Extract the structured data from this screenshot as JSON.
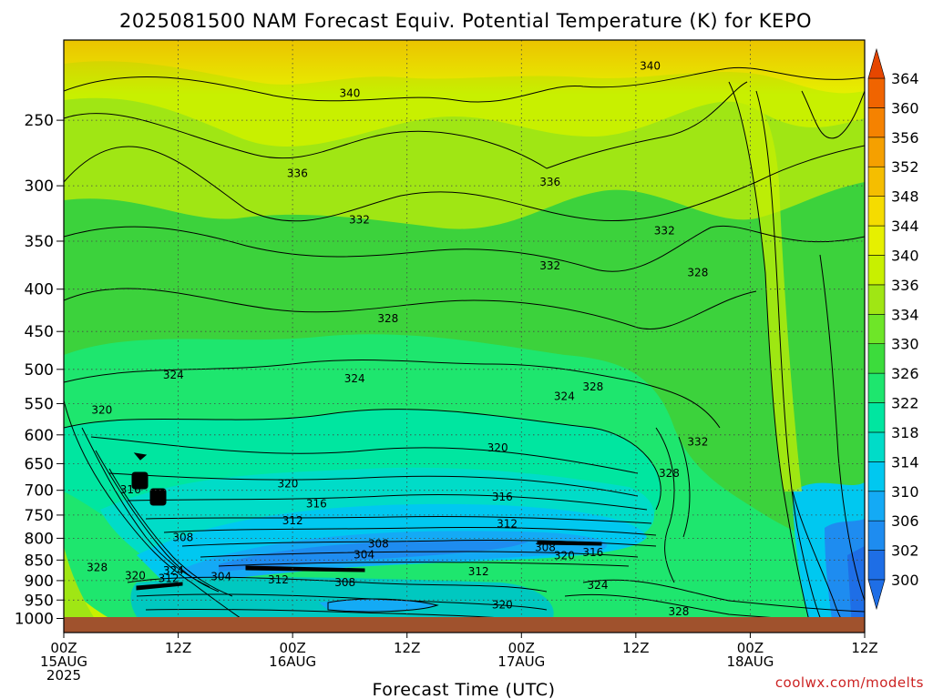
{
  "title": "2025081500 NAM Forecast Equiv. Potential Temperature (K) for KEPO",
  "watermark": "coolwx.com/modelts",
  "chart_data": {
    "type": "heatmap",
    "title": "2025081500 NAM Forecast Equiv. Potential Temperature (K) for KEPO",
    "xlabel": "Forecast Time (UTC)",
    "ylabel": "",
    "x_unit": "hours since 2025-08-15 00Z",
    "xlim": [
      0,
      84
    ],
    "ylim": [
      1040,
      200
    ],
    "y_scale": "log-pressure",
    "grid": true,
    "x_ticks": [
      {
        "hour": 0,
        "lines": [
          "00Z",
          "15AUG",
          "2025"
        ]
      },
      {
        "hour": 12,
        "lines": [
          "12Z"
        ]
      },
      {
        "hour": 24,
        "lines": [
          "00Z",
          "16AUG"
        ]
      },
      {
        "hour": 36,
        "lines": [
          "12Z"
        ]
      },
      {
        "hour": 48,
        "lines": [
          "00Z",
          "17AUG"
        ]
      },
      {
        "hour": 60,
        "lines": [
          "12Z"
        ]
      },
      {
        "hour": 72,
        "lines": [
          "00Z",
          "18AUG"
        ]
      },
      {
        "hour": 84,
        "lines": [
          "12Z"
        ]
      }
    ],
    "y_ticks": [
      250,
      300,
      350,
      400,
      450,
      500,
      550,
      600,
      650,
      700,
      750,
      800,
      850,
      900,
      950,
      1000
    ],
    "colorbar": {
      "levels": [
        300,
        302,
        306,
        310,
        314,
        318,
        322,
        326,
        330,
        334,
        336,
        340,
        344,
        348,
        352,
        356,
        360,
        364
      ],
      "colors": [
        "#1e6ee6",
        "#1e8cf0",
        "#14aaf5",
        "#00c8f0",
        "#00dcc8",
        "#00e6a0",
        "#1ee66e",
        "#3cdc3c",
        "#6ee628",
        "#a0e614",
        "#c8f000",
        "#e6f000",
        "#f5dc00",
        "#f5be00",
        "#f5a000",
        "#f58200",
        "#f06400",
        "#e64600"
      ]
    },
    "contour_labels": [
      {
        "text": "340",
        "hour": 30,
        "p": 232
      },
      {
        "text": "340",
        "hour": 61.5,
        "p": 215
      },
      {
        "text": "336",
        "hour": 24.5,
        "p": 290
      },
      {
        "text": "336",
        "hour": 51,
        "p": 297
      },
      {
        "text": "332",
        "hour": 31,
        "p": 330
      },
      {
        "text": "332",
        "hour": 63,
        "p": 340
      },
      {
        "text": "332",
        "hour": 51,
        "p": 375
      },
      {
        "text": "328",
        "hour": 34,
        "p": 434
      },
      {
        "text": "328",
        "hour": 66.5,
        "p": 382
      },
      {
        "text": "328",
        "hour": 55.5,
        "p": 525
      },
      {
        "text": "332",
        "hour": 66.5,
        "p": 612
      },
      {
        "text": "324",
        "hour": 11.5,
        "p": 508
      },
      {
        "text": "324",
        "hour": 30.5,
        "p": 513
      },
      {
        "text": "324",
        "hour": 52.5,
        "p": 539
      },
      {
        "text": "320",
        "hour": 4,
        "p": 560
      },
      {
        "text": "320",
        "hour": 45.5,
        "p": 622
      },
      {
        "text": "320",
        "hour": 23.5,
        "p": 687
      },
      {
        "text": "328",
        "hour": 63.5,
        "p": 668
      },
      {
        "text": "316",
        "hour": 7,
        "p": 699
      },
      {
        "text": "316",
        "hour": 26.5,
        "p": 727
      },
      {
        "text": "316",
        "hour": 46,
        "p": 713
      },
      {
        "text": "312",
        "hour": 24,
        "p": 762
      },
      {
        "text": "312",
        "hour": 46.5,
        "p": 768
      },
      {
        "text": "308",
        "hour": 12.5,
        "p": 798
      },
      {
        "text": "308",
        "hour": 33,
        "p": 812
      },
      {
        "text": "304",
        "hour": 31.5,
        "p": 837
      },
      {
        "text": "308",
        "hour": 50.5,
        "p": 821
      },
      {
        "text": "320",
        "hour": 52.5,
        "p": 840
      },
      {
        "text": "316",
        "hour": 55.5,
        "p": 832
      },
      {
        "text": "328",
        "hour": 3.5,
        "p": 868
      },
      {
        "text": "324",
        "hour": 11.5,
        "p": 875
      },
      {
        "text": "320",
        "hour": 7.5,
        "p": 888
      },
      {
        "text": "312",
        "hour": 11,
        "p": 894
      },
      {
        "text": "304",
        "hour": 16.5,
        "p": 890
      },
      {
        "text": "312",
        "hour": 22.5,
        "p": 898
      },
      {
        "text": "308",
        "hour": 29.5,
        "p": 905
      },
      {
        "text": "312",
        "hour": 43.5,
        "p": 878
      },
      {
        "text": "324",
        "hour": 56,
        "p": 912
      },
      {
        "text": "320",
        "hour": 46,
        "p": 963
      },
      {
        "text": "328",
        "hour": 64.5,
        "p": 981
      }
    ]
  }
}
